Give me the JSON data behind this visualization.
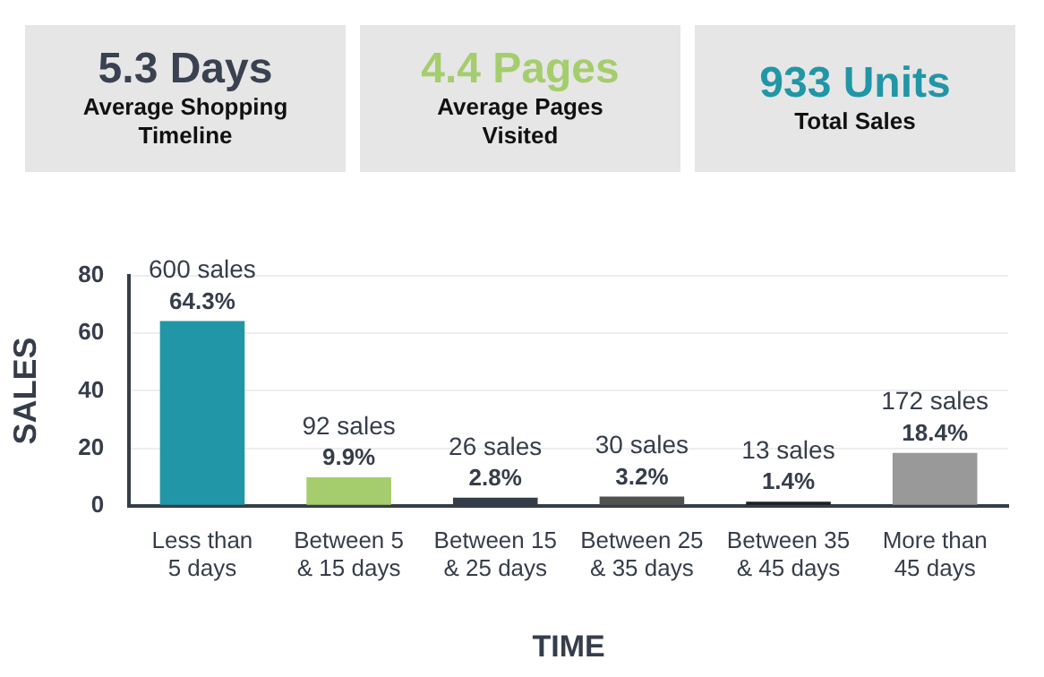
{
  "chart_data": [
    {
      "type": "other",
      "title": "5.3 Days",
      "subtitle": "Average Shopping Timeline",
      "color": "#3a4150"
    },
    {
      "type": "other",
      "title": "4.4 Pages",
      "subtitle": "Average Pages Visited",
      "color": "#a5cd6d"
    },
    {
      "type": "other",
      "title": "933 Units",
      "subtitle": "Total Sales",
      "color": "#2196a6"
    },
    {
      "type": "bar",
      "xlabel": "TIME",
      "ylabel": "SALES",
      "categories": [
        "Less than 5 days",
        "Between 5 & 15 days",
        "Between 15 & 25 days",
        "Between 25 & 35 days",
        "Between 35 & 45 days",
        "More than 45 days"
      ],
      "values": [
        64.3,
        9.9,
        2.8,
        3.2,
        1.4,
        18.4
      ],
      "colors": [
        "#2196a6",
        "#a5cd6d",
        "#363d4a",
        "#4f524f",
        "#1c1f24",
        "#999999"
      ],
      "value_labels": [
        "600 sales\n64.3%",
        "92 sales\n9.9%",
        "26 sales\n2.8%",
        "30 sales\n3.2%",
        "13 sales\n1.4%",
        "172 sales\n18.4%"
      ],
      "ylim": [
        0,
        80
      ],
      "yticks": [
        0,
        20,
        40,
        60,
        80
      ],
      "grid": "y",
      "legend": false
    }
  ]
}
